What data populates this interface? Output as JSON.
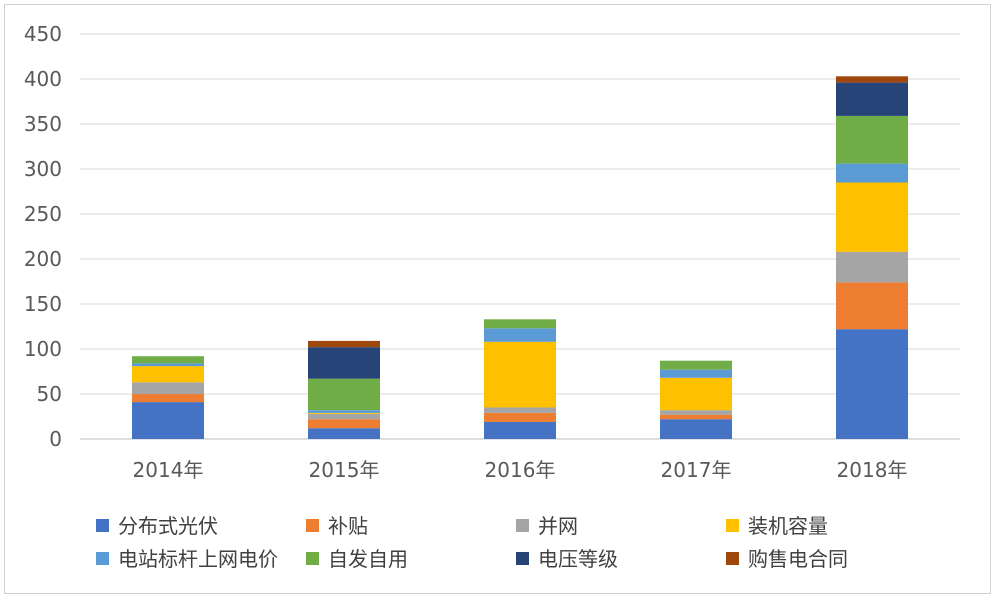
{
  "chart_data": {
    "type": "bar",
    "stacked": true,
    "categories": [
      "2014年",
      "2015年",
      "2016年",
      "2017年",
      "2018年"
    ],
    "ylim": [
      0,
      450
    ],
    "yticks": [
      0,
      50,
      100,
      150,
      200,
      250,
      300,
      350,
      400,
      450
    ],
    "grid": true,
    "legend_position": "bottom",
    "series": [
      {
        "name": "分布式光伏",
        "color": "#4472C4",
        "values": [
          41,
          12,
          19,
          22,
          122
        ]
      },
      {
        "name": "补贴",
        "color": "#ED7D31",
        "values": [
          9,
          10,
          10,
          5,
          52
        ]
      },
      {
        "name": "并网",
        "color": "#A5A5A5",
        "values": [
          13,
          6,
          6,
          5,
          34
        ]
      },
      {
        "name": "装机容量",
        "color": "#FFC000",
        "values": [
          18,
          1,
          73,
          36,
          77
        ]
      },
      {
        "name": "电站标杆上网电价",
        "color": "#5B9BD5",
        "values": [
          3,
          3,
          15,
          9,
          21
        ]
      },
      {
        "name": "自发自用",
        "color": "#70AD47",
        "values": [
          8,
          35,
          10,
          10,
          53
        ]
      },
      {
        "name": "电压等级",
        "color": "#264478",
        "values": [
          0,
          35,
          0,
          0,
          37
        ]
      },
      {
        "name": "购售电合同",
        "color": "#9E480E",
        "values": [
          0,
          7,
          0,
          0,
          7
        ]
      }
    ]
  }
}
